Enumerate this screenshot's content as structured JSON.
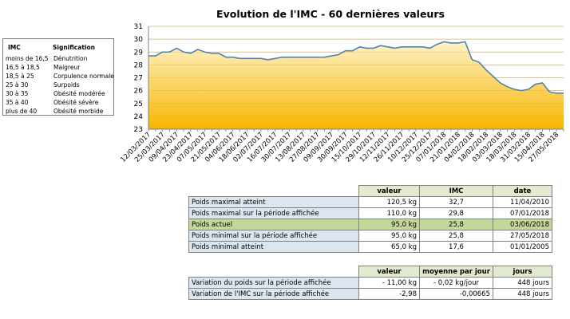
{
  "chart_data": {
    "type": "area",
    "title": "Evolution de l'IMC - 60 dernières valeurs",
    "ylim": [
      23,
      31
    ],
    "yticks": [
      23,
      24,
      25,
      26,
      27,
      28,
      29,
      30,
      31
    ],
    "grid": true,
    "x": [
      "12/03/2017",
      "",
      "25/03/2017",
      "",
      "09/04/2017",
      "",
      "23/04/2017",
      "",
      "07/05/2017",
      "",
      "21/05/2017",
      "",
      "04/06/2017",
      "",
      "18/06/2017",
      "",
      "02/07/2017",
      "",
      "16/07/2017",
      "",
      "30/07/2017",
      "",
      "13/08/2017",
      "",
      "27/08/2017",
      "",
      "09/09/2017",
      "",
      "30/09/2017",
      "",
      "15/10/2017",
      "",
      "29/10/2017",
      "",
      "12/11/2017",
      "",
      "26/11/2017",
      "",
      "10/12/2017",
      "",
      "25/12/2017",
      "",
      "07/01/2018",
      "",
      "21/01/2018",
      "",
      "04/02/2018",
      "",
      "18/02/2018",
      "",
      "03/03/2018",
      "",
      "18/03/2018",
      "",
      "31/03/2018",
      "",
      "15/04/2018",
      "",
      "27/05/2018",
      ""
    ],
    "values": [
      28.7,
      28.7,
      29.0,
      29.0,
      29.3,
      29.0,
      28.9,
      29.2,
      29.0,
      28.9,
      28.9,
      28.6,
      28.6,
      28.5,
      28.5,
      28.5,
      28.5,
      28.4,
      28.5,
      28.6,
      28.6,
      28.6,
      28.6,
      28.6,
      28.6,
      28.6,
      28.7,
      28.8,
      29.1,
      29.1,
      29.4,
      29.3,
      29.3,
      29.5,
      29.4,
      29.3,
      29.4,
      29.4,
      29.4,
      29.4,
      29.3,
      29.6,
      29.8,
      29.7,
      29.7,
      29.8,
      28.4,
      28.2,
      27.6,
      27.1,
      26.6,
      26.3,
      26.1,
      26.0,
      26.1,
      26.5,
      26.6,
      25.9,
      25.8,
      25.8
    ],
    "colors": {
      "line": "#4f81bd",
      "fill_top": "#fef2c7",
      "fill_bottom": "#f7b500"
    }
  },
  "legend": {
    "header_imc": "IMC",
    "header_signification": "Signification",
    "rows": [
      {
        "imc": "moins de 16,5",
        "sig": "Dénutrition"
      },
      {
        "imc": "16,5 à 18,5",
        "sig": "Maigreur"
      },
      {
        "imc": "18,5 à 25",
        "sig": "Corpulence normale"
      },
      {
        "imc": "25 à 30",
        "sig": "Surpoids"
      },
      {
        "imc": "30 à 35",
        "sig": "Obésité modérée"
      },
      {
        "imc": "35 à 40",
        "sig": "Obésité sévère"
      },
      {
        "imc": "plus de 40",
        "sig": "Obésité morbide"
      }
    ]
  },
  "table1": {
    "headers": [
      "valeur",
      "IMC",
      "date"
    ],
    "rows": [
      {
        "label": "Poids maximal atteint",
        "valeur": "120,5 kg",
        "imc": "32,7",
        "date": "11/04/2010"
      },
      {
        "label": "Poids maximal sur la période affichée",
        "valeur": "110,0 kg",
        "imc": "29,8",
        "date": "07/01/2018"
      },
      {
        "label": "Poids actuel",
        "valeur": "95,0 kg",
        "imc": "25,8",
        "date": "03/06/2018"
      },
      {
        "label": "Poids minimal sur la période affichée",
        "valeur": "95,0 kg",
        "imc": "25,8",
        "date": "27/05/2018"
      },
      {
        "label": "Poids minimal atteint",
        "valeur": "65,0 kg",
        "imc": "17,6",
        "date": "01/01/2005"
      }
    ]
  },
  "table2": {
    "headers": [
      "valeur",
      "moyenne par jour",
      "jours"
    ],
    "rows": [
      {
        "label": "Variation du poids sur la période affichée",
        "valeur": "- 11,00 kg",
        "moyenne": "- 0,02 kg/jour",
        "jours": "448 jours"
      },
      {
        "label": "Variation de l'IMC sur la période affichée",
        "valeur": "-2,98",
        "moyenne": "-0,00665",
        "jours": "448 jours"
      }
    ]
  }
}
